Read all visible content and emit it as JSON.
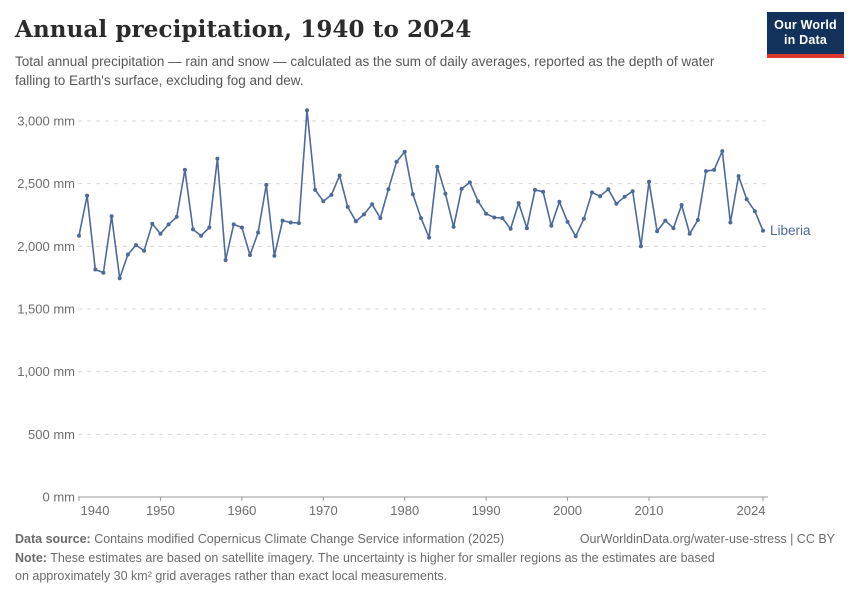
{
  "header": {
    "title": "Annual precipitation, 1940 to 2024",
    "subtitle": "Total annual precipitation — rain and snow — calculated as the sum of daily averages, reported as the depth of water falling to Earth's surface, excluding fog and dew.",
    "logo": {
      "line1": "Our World",
      "line2": "in Data"
    }
  },
  "chart_data": {
    "type": "line",
    "title": "Annual precipitation, 1940 to 2024",
    "entity_label": "Liberia",
    "unit": "mm",
    "x_start": 1940,
    "x_end": 2024,
    "ylim": [
      0,
      3000
    ],
    "grid": "horizontal-dashed",
    "legend_position": "end-of-line",
    "line_color": "#4c6a9c",
    "axis_color": "#989898",
    "grid_color": "#d7d7d7",
    "tick_text_color": "#6e6e6e",
    "yticks": [
      {
        "value": 0,
        "label": "0 mm"
      },
      {
        "value": 500,
        "label": "500 mm"
      },
      {
        "value": 1000,
        "label": "1,000 mm"
      },
      {
        "value": 1500,
        "label": "1,500 mm"
      },
      {
        "value": 2000,
        "label": "2,000 mm"
      },
      {
        "value": 2500,
        "label": "2,500 mm"
      },
      {
        "value": 3000,
        "label": "3,000 mm"
      }
    ],
    "xticks": [
      1940,
      1950,
      1960,
      1970,
      1980,
      1990,
      2000,
      2010,
      2024
    ],
    "series": [
      {
        "name": "Liberia",
        "values": [
          2085,
          2405,
          1815,
          1790,
          2240,
          1745,
          1935,
          2010,
          1965,
          2180,
          2100,
          2175,
          2235,
          2610,
          2135,
          2085,
          2150,
          2700,
          1890,
          2175,
          2150,
          1930,
          2110,
          2490,
          1925,
          2205,
          2190,
          2185,
          3085,
          2450,
          2360,
          2410,
          2565,
          2315,
          2200,
          2255,
          2335,
          2225,
          2455,
          2675,
          2755,
          2415,
          2225,
          2070,
          2635,
          2420,
          2155,
          2460,
          2510,
          2360,
          2260,
          2230,
          2225,
          2140,
          2345,
          2145,
          2450,
          2435,
          2165,
          2355,
          2195,
          2080,
          2220,
          2430,
          2400,
          2455,
          2340,
          2395,
          2440,
          2000,
          2515,
          2120,
          2205,
          2145,
          2330,
          2100,
          2210,
          2600,
          2610,
          2760,
          2190,
          2560,
          2375,
          2280,
          2125
        ]
      }
    ]
  },
  "footer": {
    "datasource_label": "Data source:",
    "datasource_text": " Contains modified Copernicus Climate Change Service information (2025)",
    "link": "OurWorldinData.org/water-use-stress | CC BY",
    "note_label": "Note:",
    "note_text": " These estimates are based on satellite imagery. The uncertainty is higher for smaller regions as the estimates are based on approximately 30 km² grid averages rather than exact local measurements."
  }
}
